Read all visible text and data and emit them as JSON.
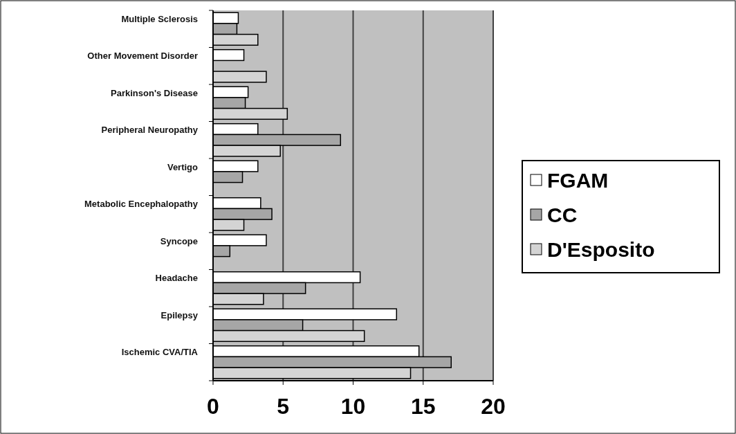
{
  "chart_data": {
    "type": "bar",
    "orientation": "horizontal",
    "categories": [
      "Multiple Sclerosis",
      "Other Movement Disorder",
      "Parkinson's Disease",
      "Peripheral Neuropathy",
      "Vertigo",
      "Metabolic Encephalopathy",
      "Syncope",
      "Headache",
      "Epilepsy",
      "Ischemic CVA/TIA"
    ],
    "series": [
      {
        "name": "FGAM",
        "color": "#ffffff",
        "values": [
          1.8,
          2.2,
          2.5,
          3.2,
          3.2,
          3.4,
          3.8,
          10.5,
          13.1,
          14.7
        ]
      },
      {
        "name": "CC",
        "color": "#a6a6a6",
        "values": [
          1.7,
          0,
          2.3,
          9.1,
          2.1,
          4.2,
          1.2,
          6.6,
          6.4,
          17.0
        ]
      },
      {
        "name": "D'Esposito",
        "color": "#d4d4d4",
        "values": [
          3.2,
          3.8,
          5.3,
          4.8,
          0,
          2.2,
          0,
          3.6,
          10.8,
          14.1
        ]
      }
    ],
    "xlim": [
      0,
      20
    ],
    "xticks": [
      0,
      5,
      10,
      15,
      20
    ],
    "grid": "x",
    "legend": "right"
  }
}
